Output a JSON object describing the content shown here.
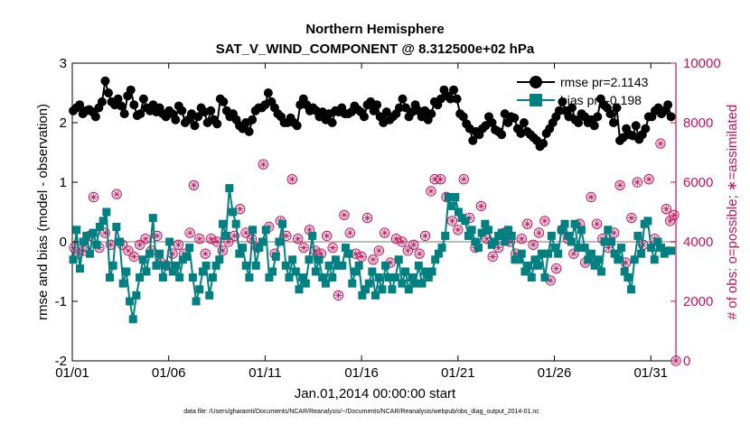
{
  "chart_data": {
    "type": "line",
    "title": "Northern Hemisphere",
    "subtitle": "SAT_V_WIND_COMPONENT @ 8.312500e+02 hPa",
    "xlabel": "Jan.01,2014 00:00:00 start",
    "ylabel": "rmse and bias (model - observation)",
    "ylabel_right": "# of obs: o=possible; ∗=assimilated",
    "xlim": [
      0,
      31.3
    ],
    "ylim": [
      -2,
      3
    ],
    "ylim_right": [
      0,
      10000
    ],
    "x_tick_values": [
      0,
      5,
      10,
      15,
      20,
      25,
      30
    ],
    "x_tick_labels": [
      "01/01",
      "01/06",
      "01/11",
      "01/16",
      "01/21",
      "01/26",
      "01/31"
    ],
    "y_ticks": [
      "-2",
      "-1",
      "0",
      "1",
      "2",
      "3"
    ],
    "y_tick_values": [
      -2,
      -1,
      0,
      1,
      2,
      3
    ],
    "y_right_ticks": [
      "0",
      "2000",
      "4000",
      "6000",
      "8000",
      "10000"
    ],
    "y_right_tick_values": [
      0,
      2000,
      4000,
      6000,
      8000,
      10000
    ],
    "legend_position": "top-right",
    "footnote": "data file: /Users/gharamti/Documents/NCAR/Reanalysis/~/Documents/NCAR/Reanalysis/webpub/obs_diag_output_2014-01.nc",
    "series": [
      {
        "name": "rmse",
        "legend_label": "rmse pr=2.1143",
        "axis": "left",
        "color": "#000000",
        "values": [
          2.2,
          2.25,
          2.3,
          2.15,
          2.2,
          2.22,
          2.18,
          2.1,
          2.25,
          2.35,
          2.7,
          2.5,
          2.35,
          2.3,
          2.4,
          2.28,
          2.15,
          2.45,
          2.55,
          2.3,
          2.12,
          2.15,
          2.4,
          2.25,
          2.2,
          2.3,
          2.18,
          2.25,
          2.15,
          2.1,
          2.2,
          2.15,
          2.05,
          2.28,
          2.2,
          2.0,
          2.05,
          2.15,
          1.95,
          2.1,
          2.25,
          2.18,
          2.0,
          2.2,
          2.05,
          1.98,
          2.4,
          2.35,
          2.2,
          2.1,
          2.15,
          2.05,
          1.95,
          1.9,
          2.0,
          1.85,
          2.05,
          2.2,
          2.25,
          2.25,
          2.3,
          2.5,
          2.35,
          2.25,
          2.15,
          2.1,
          2.0,
          2.0,
          2.08,
          2.0,
          1.95,
          2.3,
          2.4,
          2.3,
          2.2,
          2.25,
          2.2,
          2.1,
          2.18,
          2.05,
          2.15,
          2.0,
          2.2,
          2.18,
          2.25,
          2.15,
          2.15,
          2.18,
          2.28,
          2.22,
          2.18,
          2.1,
          2.3,
          2.35,
          2.2,
          2.3,
          2.1,
          2.0,
          2.18,
          2.05,
          2.1,
          2.15,
          2.25,
          2.4,
          2.25,
          2.1,
          2.18,
          2.3,
          2.2,
          2.1,
          2.2,
          2.05,
          2.15,
          2.35,
          2.3,
          2.4,
          2.55,
          2.45,
          2.4,
          2.55,
          2.4,
          2.15,
          2.1,
          1.98,
          1.9,
          1.7,
          1.85,
          1.8,
          1.9,
          1.95,
          2.1,
          2.0,
          1.88,
          1.85,
          1.8,
          2.15,
          2.0,
          2.1,
          2.08,
          1.9,
          1.82,
          2.0,
          1.85,
          1.8,
          1.75,
          1.7,
          1.6,
          1.65,
          1.82,
          1.9,
          2.0,
          2.1,
          2.2,
          2.35,
          2.2,
          2.1,
          2.25,
          2.05,
          2.0,
          2.15,
          2.1,
          2.0,
          2.05,
          1.95,
          2.1,
          2.4,
          2.3,
          2.25,
          2.15,
          2.0,
          2.25,
          1.7,
          1.75,
          1.9,
          1.8,
          1.78,
          1.95,
          1.72,
          1.8,
          1.9,
          2.1,
          2.1,
          2.2,
          2.25,
          2.15,
          2.2,
          2.3,
          2.1
        ]
      },
      {
        "name": "bias",
        "legend_label": "bias pr=-0.198",
        "axis": "left",
        "color": "#008080",
        "values": [
          -0.3,
          0.2,
          -0.45,
          0.0,
          0.1,
          -0.2,
          0.15,
          -0.05,
          0.25,
          0.35,
          0.5,
          -0.6,
          -0.4,
          0.25,
          0.0,
          -0.7,
          -0.5,
          -1.0,
          -1.3,
          -0.9,
          -0.6,
          -0.3,
          -0.5,
          -0.2,
          0.4,
          -0.4,
          -0.2,
          -0.6,
          -0.4,
          0.0,
          -0.5,
          -0.4,
          -0.6,
          -0.3,
          -0.25,
          -0.1,
          -0.6,
          -1.0,
          -0.8,
          -0.5,
          -0.4,
          -0.9,
          -0.6,
          -0.4,
          -0.3,
          0.3,
          0.1,
          0.9,
          0.5,
          0.3,
          -0.2,
          -0.1,
          -0.4,
          -0.6,
          0.2,
          -0.4,
          -0.1,
          0.0,
          0.2,
          -0.6,
          -0.5,
          -0.25,
          0.0,
          0.3,
          -0.4,
          -0.6,
          -0.3,
          -0.5,
          -0.8,
          -0.6,
          -0.7,
          -0.3,
          0.1,
          -0.5,
          -0.3,
          -0.6,
          -0.7,
          -0.4,
          -0.6,
          -0.3,
          -0.4,
          -0.4,
          -0.1,
          -0.2,
          -0.7,
          -0.5,
          -0.4,
          -0.9,
          -0.8,
          -0.7,
          -0.5,
          -0.9,
          -0.6,
          -0.8,
          -0.4,
          -0.6,
          -0.8,
          -0.6,
          -0.3,
          -0.7,
          -0.5,
          -0.8,
          -0.6,
          -0.7,
          -0.4,
          -0.7,
          -0.5,
          -0.6,
          -0.5,
          -0.3,
          -0.2,
          -0.1,
          0.1,
          0.75,
          0.6,
          0.75,
          0.5,
          0.4,
          0.35,
          0.1,
          0.2,
          0.0,
          -0.1,
          0.15,
          0.3,
          0.2,
          -0.05,
          0.0,
          0.1,
          0.15,
          0.0,
          0.2,
          0.1,
          -0.3,
          -0.3,
          -0.2,
          -0.5,
          -0.4,
          -0.6,
          -0.3,
          -0.4,
          -0.2,
          -0.6,
          -0.2,
          0.1,
          -0.1,
          -0.2,
          0.2,
          0.3,
          0.1,
          0.0,
          0.3,
          -0.1,
          0.2,
          -0.1,
          -0.3,
          -0.2,
          -0.4,
          -0.3,
          -0.5,
          0.0,
          0.2,
          0.0,
          -0.2,
          -0.3,
          -0.1,
          -0.5,
          -0.6,
          -0.8,
          -0.3,
          0.1,
          -0.2,
          0.3,
          0.35,
          -0.1,
          -0.3,
          0.0,
          -0.1,
          -0.2,
          -0.15,
          -0.15
        ]
      },
      {
        "name": "possible",
        "axis": "right",
        "color": "#c8105a",
        "marker": "circle",
        "points": [
          [
            0.1,
            3800
          ],
          [
            0.3,
            3600
          ],
          [
            0.6,
            3700
          ],
          [
            0.9,
            4200
          ],
          [
            1.1,
            5500
          ],
          [
            1.4,
            3800
          ],
          [
            1.7,
            4300
          ],
          [
            2.0,
            3900
          ],
          [
            2.3,
            5600
          ],
          [
            2.6,
            3900
          ],
          [
            2.9,
            3700
          ],
          [
            3.2,
            3500
          ],
          [
            3.5,
            3900
          ],
          [
            3.8,
            4100
          ],
          [
            4.1,
            3700
          ],
          [
            4.4,
            4200
          ],
          [
            4.6,
            3300
          ],
          [
            4.9,
            3200
          ],
          [
            5.2,
            3600
          ],
          [
            5.5,
            3900
          ],
          [
            5.8,
            3600
          ],
          [
            6.1,
            4300
          ],
          [
            6.3,
            5900
          ],
          [
            6.6,
            4100
          ],
          [
            6.9,
            3600
          ],
          [
            7.2,
            4100
          ],
          [
            7.5,
            4000
          ],
          [
            7.8,
            3700
          ],
          [
            8.1,
            4000
          ],
          [
            8.4,
            4200
          ],
          [
            8.7,
            5100
          ],
          [
            9.0,
            4300
          ],
          [
            9.3,
            4100
          ],
          [
            9.6,
            3800
          ],
          [
            9.9,
            6600
          ],
          [
            10.2,
            4500
          ],
          [
            10.5,
            3600
          ],
          [
            10.8,
            4700
          ],
          [
            11.1,
            4200
          ],
          [
            11.4,
            6100
          ],
          [
            11.7,
            4100
          ],
          [
            12.0,
            3800
          ],
          [
            12.3,
            4400
          ],
          [
            12.6,
            3700
          ],
          [
            12.9,
            3600
          ],
          [
            13.2,
            4200
          ],
          [
            13.5,
            3800
          ],
          [
            13.8,
            2200
          ],
          [
            14.1,
            4900
          ],
          [
            14.4,
            4300
          ],
          [
            14.7,
            3600
          ],
          [
            15.0,
            3500
          ],
          [
            15.3,
            4800
          ],
          [
            15.6,
            3400
          ],
          [
            15.9,
            3700
          ],
          [
            16.2,
            4300
          ],
          [
            16.5,
            3300
          ],
          [
            16.8,
            4100
          ],
          [
            17.1,
            4000
          ],
          [
            17.4,
            3700
          ],
          [
            17.7,
            3900
          ],
          [
            18.0,
            3600
          ],
          [
            18.3,
            4200
          ],
          [
            18.6,
            5700
          ],
          [
            18.8,
            6100
          ],
          [
            19.1,
            6100
          ],
          [
            19.4,
            5500
          ],
          [
            19.7,
            4700
          ],
          [
            20.0,
            4400
          ],
          [
            20.3,
            6100
          ],
          [
            20.6,
            4800
          ],
          [
            20.9,
            3800
          ],
          [
            21.2,
            5200
          ],
          [
            21.5,
            4100
          ],
          [
            21.8,
            3500
          ],
          [
            22.1,
            3800
          ],
          [
            22.4,
            4300
          ],
          [
            22.7,
            4000
          ],
          [
            23.0,
            3600
          ],
          [
            23.3,
            4100
          ],
          [
            23.6,
            4600
          ],
          [
            23.9,
            3900
          ],
          [
            24.2,
            4300
          ],
          [
            24.5,
            4700
          ],
          [
            24.8,
            2700
          ],
          [
            25.1,
            3100
          ],
          [
            25.4,
            4400
          ],
          [
            25.7,
            4100
          ],
          [
            26.0,
            3600
          ],
          [
            26.3,
            4600
          ],
          [
            26.6,
            3300
          ],
          [
            26.9,
            5500
          ],
          [
            27.2,
            4600
          ],
          [
            27.5,
            4100
          ],
          [
            27.8,
            3800
          ],
          [
            28.1,
            4300
          ],
          [
            28.4,
            5900
          ],
          [
            28.7,
            3300
          ],
          [
            29.0,
            4800
          ],
          [
            29.3,
            6000
          ],
          [
            29.6,
            3900
          ],
          [
            29.9,
            6100
          ],
          [
            30.2,
            4100
          ],
          [
            30.5,
            7300
          ],
          [
            30.8,
            5100
          ],
          [
            31.0,
            4700
          ],
          [
            31.2,
            4900
          ],
          [
            31.3,
            0
          ]
        ]
      }
    ]
  }
}
